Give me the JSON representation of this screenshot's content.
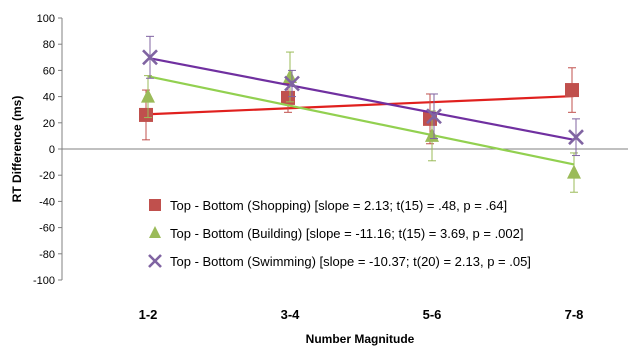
{
  "chart_data": {
    "type": "line",
    "xlabel": "Number Magnitude",
    "ylabel": "RT Difference (ms)",
    "categories": [
      "1-2",
      "3-4",
      "5-6",
      "7-8"
    ],
    "ylim": [
      -100,
      100
    ],
    "ytick_step": 20,
    "grid": false,
    "legend_position": "bottom-right (inside plot)",
    "series": [
      {
        "name": "Top - Bottom  (Shopping)",
        "stats": "[slope = 2.13; t(15) = .48, p = .64]",
        "marker": "square",
        "color": "#c0504d",
        "trend_color": "#e0201e",
        "values": [
          26,
          39,
          23,
          45
        ],
        "error": [
          19,
          11,
          19,
          17
        ],
        "trend": [
          26.5,
          40.4
        ]
      },
      {
        "name": "Top - Bottom  (Building)",
        "stats": "[slope = -11.16; t(15) = 3.69, p = .002]",
        "marker": "triangle",
        "color": "#9bbb59",
        "trend_color": "#92d050",
        "values": [
          40,
          55,
          10,
          -18
        ],
        "error": [
          16,
          19,
          19,
          15
        ],
        "trend": [
          55.5,
          -11.8
        ]
      },
      {
        "name": "Top - Bottom  (Swimming)",
        "stats": "[slope = -10.37; t(20) = 2.13, p = .05]",
        "marker": "x",
        "color": "#8064a2",
        "trend_color": "#7030a0",
        "values": [
          70,
          50,
          25,
          9
        ],
        "error": [
          16,
          10,
          17,
          14
        ],
        "trend": [
          69.5,
          7.0
        ]
      }
    ]
  }
}
